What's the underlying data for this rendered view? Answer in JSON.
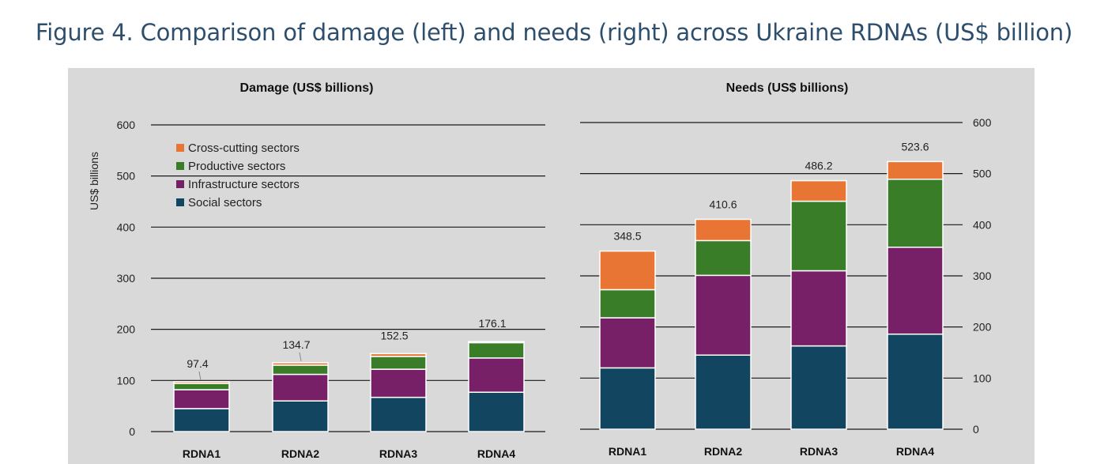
{
  "figure": {
    "title": "Figure 4. Comparison of damage (left) and needs (right) across Ukraine RDNAs (US$ billion)"
  },
  "colors": {
    "background_panel": "#d9d9d9",
    "social": "#12455f",
    "infrastructure": "#772068",
    "productive": "#3a7d29",
    "cross_cutting": "#e87533",
    "title_text": "#2d4f6d"
  },
  "chart_data": [
    {
      "type": "bar",
      "stacked": true,
      "title": "Damage (US$ billions)",
      "ylabel": "US$ billions",
      "xlabel": "",
      "ylim": [
        0,
        600
      ],
      "yticks": [
        0,
        100,
        200,
        300,
        400,
        500,
        600
      ],
      "categories": [
        "RDNA1",
        "RDNA2",
        "RDNA3",
        "RDNA4"
      ],
      "series": [
        {
          "name": "Social sectors",
          "key": "social",
          "values": [
            45,
            60,
            67,
            77
          ]
        },
        {
          "name": "Infrastructure sectors",
          "key": "infrastructure",
          "values": [
            37,
            52,
            55,
            67
          ]
        },
        {
          "name": "Productive sectors",
          "key": "productive",
          "values": [
            12,
            18,
            25,
            30
          ]
        },
        {
          "name": "Cross-cutting sectors",
          "key": "cross_cutting",
          "values": [
            3.4,
            4.7,
            5.5,
            2.1
          ]
        }
      ],
      "totals": [
        "97.4",
        "134.7",
        "152.5",
        "176.1"
      ],
      "legend": [
        "Cross-cutting sectors",
        "Productive sectors",
        "Infrastructure sectors",
        "Social sectors"
      ],
      "legend_position": "top-left",
      "y_axis_side": "left"
    },
    {
      "type": "bar",
      "stacked": true,
      "title": "Needs (US$ billions)",
      "ylabel": "",
      "xlabel": "",
      "ylim": [
        0,
        600
      ],
      "yticks": [
        0,
        100,
        200,
        300,
        400,
        500,
        600
      ],
      "categories": [
        "RDNA1",
        "RDNA2",
        "RDNA3",
        "RDNA4"
      ],
      "series": [
        {
          "name": "Social sectors",
          "key": "social",
          "values": [
            120,
            145,
            163,
            186
          ]
        },
        {
          "name": "Infrastructure sectors",
          "key": "infrastructure",
          "values": [
            98,
            156,
            147,
            170
          ]
        },
        {
          "name": "Productive sectors",
          "key": "productive",
          "values": [
            55,
            68,
            136,
            133
          ]
        },
        {
          "name": "Cross-cutting sectors",
          "key": "cross_cutting",
          "values": [
            75.5,
            41.6,
            40.2,
            34.6
          ]
        }
      ],
      "totals": [
        "348.5",
        "410.6",
        "486.2",
        "523.6"
      ],
      "legend": [],
      "y_axis_side": "right"
    }
  ]
}
